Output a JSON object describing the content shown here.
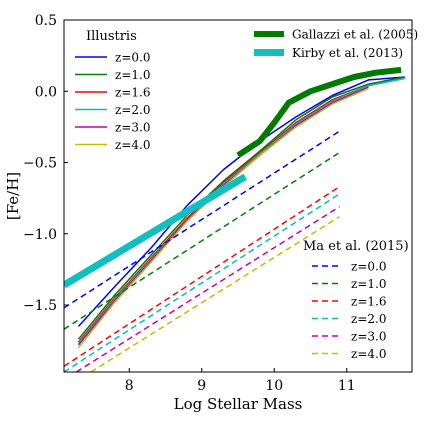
{
  "chart_data": {
    "type": "line",
    "xlabel": "Log Stellar Mass",
    "ylabel": "[Fe/H]",
    "xlim": [
      7.1,
      11.9
    ],
    "ylim": [
      -1.97,
      0.5
    ],
    "xticks": [
      8,
      9,
      10,
      11
    ],
    "yticks": [
      0.5,
      0.0,
      -0.5,
      -1.0,
      -1.5
    ],
    "xtick_labels": [
      "8",
      "9",
      "10",
      "11"
    ],
    "ytick_labels": [
      "0.5",
      "0.0",
      "−0.5",
      "−1.0",
      "−1.5"
    ],
    "legends": {
      "illustris": {
        "title": "Illustris",
        "placement": "top-left",
        "entries": [
          "z=0.0",
          "z=1.0",
          "z=1.6",
          "z=2.0",
          "z=3.0",
          "z=4.0"
        ]
      },
      "observations": {
        "placement": "top-right",
        "entries": [
          "Gallazzi et al. (2005)",
          "Kirby et al. (2013)"
        ]
      },
      "ma": {
        "title": "Ma et al. (2015)",
        "placement": "bottom-right",
        "entries": [
          "z=0.0",
          "z=1.0",
          "z=1.6",
          "z=2.0",
          "z=3.0",
          "z=4.0"
        ]
      }
    },
    "colors": {
      "z=0.0": "#0000ff",
      "z=1.0": "#008000",
      "z=1.6": "#ff0000",
      "z=2.0": "#00bfbf",
      "z=3.0": "#bf00bf",
      "z=4.0": "#bfbf00",
      "Gallazzi et al. (2005)": "#007a00",
      "Kirby et al. (2013)": "#10c0c0"
    },
    "series": [
      {
        "group": "illustris",
        "name": "z=0.0",
        "style": "solid",
        "x": [
          7.3,
          7.8,
          8.3,
          8.8,
          9.3,
          9.8,
          10.3,
          10.8,
          11.3,
          11.8
        ],
        "y": [
          -1.65,
          -1.37,
          -1.1,
          -0.8,
          -0.55,
          -0.35,
          -0.18,
          -0.03,
          0.08,
          0.1
        ]
      },
      {
        "group": "illustris",
        "name": "z=1.0",
        "style": "solid",
        "x": [
          7.3,
          7.8,
          8.3,
          8.8,
          9.3,
          9.8,
          10.3,
          10.8,
          11.3,
          11.8
        ],
        "y": [
          -1.74,
          -1.43,
          -1.15,
          -0.87,
          -0.63,
          -0.42,
          -0.2,
          -0.04,
          0.05,
          0.1
        ]
      },
      {
        "group": "illustris",
        "name": "z=1.6",
        "style": "solid",
        "x": [
          7.3,
          7.8,
          8.3,
          8.8,
          9.3,
          9.8,
          10.3,
          10.8,
          11.3,
          11.8
        ],
        "y": [
          -1.76,
          -1.45,
          -1.17,
          -0.89,
          -0.64,
          -0.43,
          -0.22,
          -0.06,
          0.04,
          0.09
        ]
      },
      {
        "group": "illustris",
        "name": "z=2.0",
        "style": "solid",
        "x": [
          7.3,
          7.8,
          8.3,
          8.8,
          9.3,
          9.8,
          10.3,
          10.8,
          11.3,
          11.8
        ],
        "y": [
          -1.77,
          -1.46,
          -1.18,
          -0.9,
          -0.65,
          -0.44,
          -0.23,
          -0.07,
          0.04,
          0.09
        ]
      },
      {
        "group": "illustris",
        "name": "z=3.0",
        "style": "solid",
        "x": [
          7.3,
          7.8,
          8.3,
          8.8,
          9.3,
          9.8,
          10.3,
          10.8,
          11.3
        ],
        "y": [
          -1.78,
          -1.47,
          -1.19,
          -0.9,
          -0.66,
          -0.45,
          -0.24,
          -0.08,
          0.03
        ]
      },
      {
        "group": "illustris",
        "name": "z=4.0",
        "style": "solid",
        "x": [
          7.3,
          7.8,
          8.3,
          8.8,
          9.3,
          9.8,
          10.3,
          10.8,
          11.3
        ],
        "y": [
          -1.8,
          -1.48,
          -1.2,
          -0.91,
          -0.67,
          -0.45,
          -0.25,
          -0.09,
          0.02
        ]
      },
      {
        "group": "observations",
        "name": "Gallazzi et al. (2005)",
        "style": "thick",
        "x": [
          9.5,
          9.8,
          10.0,
          10.2,
          10.5,
          10.8,
          11.1,
          11.4,
          11.75
        ],
        "y": [
          -0.45,
          -0.35,
          -0.22,
          -0.08,
          0.0,
          0.05,
          0.1,
          0.13,
          0.15
        ]
      },
      {
        "group": "observations",
        "name": "Kirby et al. (2013)",
        "style": "thick",
        "x": [
          7.1,
          9.6
        ],
        "y": [
          -1.36,
          -0.6
        ]
      },
      {
        "group": "ma",
        "name": "z=0.0",
        "style": "dashed",
        "x": [
          7.1,
          10.9
        ],
        "y": [
          -1.52,
          -0.28
        ]
      },
      {
        "group": "ma",
        "name": "z=1.0",
        "style": "dashed",
        "x": [
          7.1,
          10.9
        ],
        "y": [
          -1.67,
          -0.43
        ]
      },
      {
        "group": "ma",
        "name": "z=1.6",
        "style": "dashed",
        "x": [
          7.1,
          10.9
        ],
        "y": [
          -1.93,
          -0.67
        ]
      },
      {
        "group": "ma",
        "name": "z=2.0",
        "style": "dashed",
        "x": [
          7.1,
          10.9
        ],
        "y": [
          -1.97,
          -0.72
        ]
      },
      {
        "group": "ma",
        "name": "z=3.0",
        "style": "dashed",
        "x": [
          7.27,
          10.9
        ],
        "y": [
          -1.97,
          -0.81
        ]
      },
      {
        "group": "ma",
        "name": "z=4.0",
        "style": "dashed",
        "x": [
          7.47,
          10.9
        ],
        "y": [
          -1.97,
          -0.88
        ]
      }
    ]
  }
}
